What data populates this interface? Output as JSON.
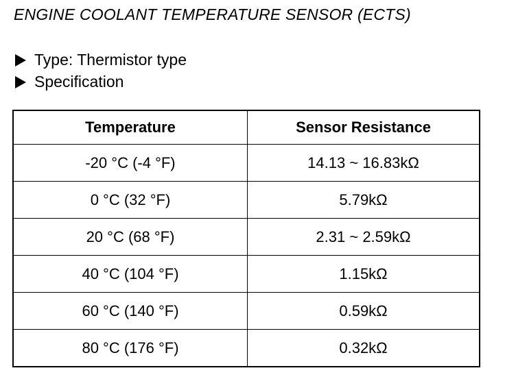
{
  "header": {
    "title": "ENGINE COOLANT TEMPERATURE SENSOR (ECTS)"
  },
  "bullets": [
    "Type:  Thermistor type",
    "Specification"
  ],
  "table": {
    "columns": [
      "Temperature",
      "Sensor Resistance"
    ],
    "rows": [
      [
        "-20 °C (-4 °F)",
        "14.13 ~ 16.83kΩ"
      ],
      [
        "0 °C (32 °F)",
        "5.79kΩ"
      ],
      [
        "20 °C (68 °F)",
        "2.31 ~ 2.59kΩ"
      ],
      [
        "40 °C (104 °F)",
        "1.15kΩ"
      ],
      [
        "60 °C (140 °F)",
        "0.59kΩ"
      ],
      [
        "80 °C (176 °F)",
        "0.32kΩ"
      ]
    ]
  }
}
